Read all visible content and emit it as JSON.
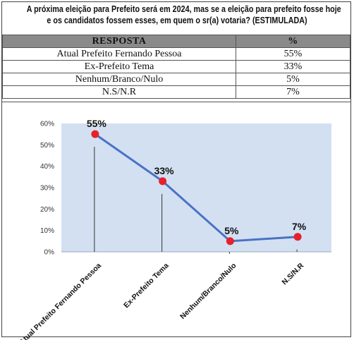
{
  "question": {
    "line1": "A próxima eleição para Prefeito será em 2024, mas se a eleição para prefeito fosse hoje",
    "line2": "e os candidatos fossem esses, em quem o sr(a) votaria? (ESTIMULADA)"
  },
  "table": {
    "headers": [
      "RESPOSTA",
      "%"
    ],
    "rows": [
      [
        "Atual Prefeito Fernando Pessoa",
        "55%"
      ],
      [
        "Ex-Prefeito Tema",
        "33%"
      ],
      [
        "Nenhum/Branco/Nulo",
        "5%"
      ],
      [
        "N.S/N.R",
        "7%"
      ]
    ]
  },
  "chart_data": {
    "type": "line",
    "categories": [
      "Atual Prefeito Fernando Pessoa",
      "Ex-Prefeito Tema",
      "Nenhum/Branco/Nulo",
      "N.S/N.R"
    ],
    "values": [
      55,
      33,
      5,
      7
    ],
    "data_labels": [
      "55%",
      "33%",
      "5%",
      "7%"
    ],
    "y_ticks": [
      "0%",
      "10%",
      "20%",
      "30%",
      "40%",
      "50%",
      "60%"
    ],
    "ylim": [
      0,
      60
    ],
    "grid": false,
    "legend": "none",
    "colors": {
      "line": "#4a72c4",
      "marker": "#e8202a",
      "plot_bg": "#d3e0f2",
      "drop_line": "#333333"
    }
  }
}
